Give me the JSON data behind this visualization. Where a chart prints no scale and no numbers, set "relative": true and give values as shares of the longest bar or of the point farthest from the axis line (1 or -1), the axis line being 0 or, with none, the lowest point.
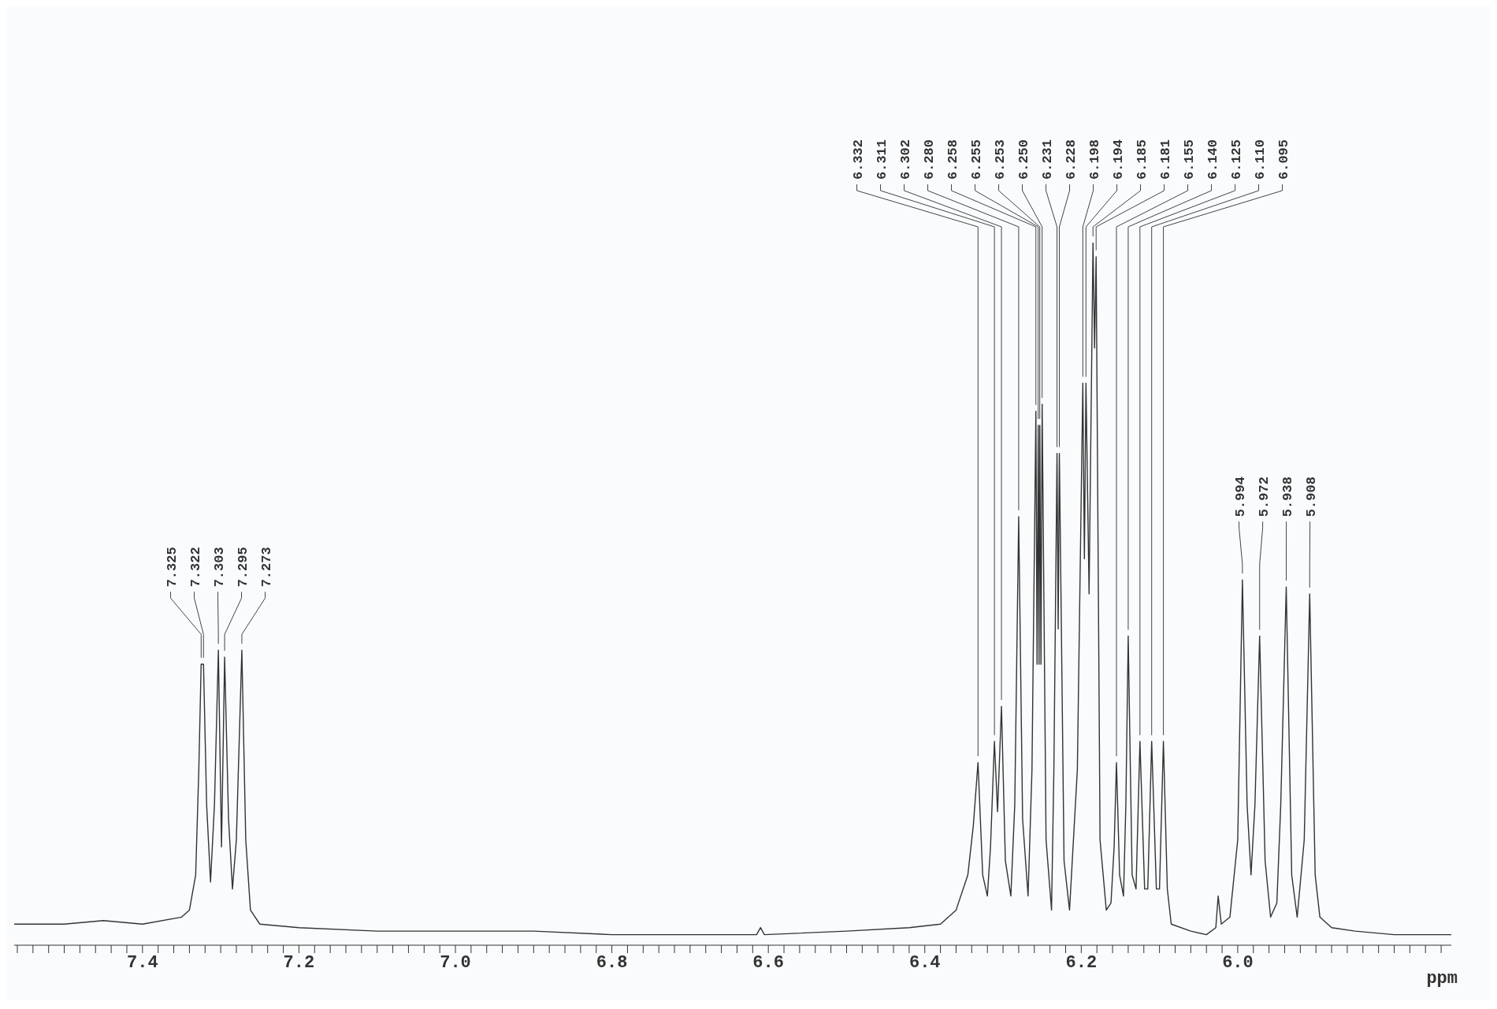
{
  "chart_data": {
    "type": "line",
    "relative": true,
    "xlabel": "ppm",
    "grid": false,
    "legend": false,
    "marker": "none",
    "line_style": "solid",
    "xlim": [
      7.564,
      5.727
    ],
    "xticks": [
      {
        "value": 7.56,
        "label": null
      },
      {
        "value": 7.54,
        "label": null
      },
      {
        "value": 7.52,
        "label": null
      },
      {
        "value": 7.5,
        "label": null
      },
      {
        "value": 7.48,
        "label": null
      },
      {
        "value": 7.46,
        "label": null
      },
      {
        "value": 7.44,
        "label": null
      },
      {
        "value": 7.42,
        "label": null
      },
      7.4,
      {
        "value": 7.38,
        "label": null
      },
      {
        "value": 7.36,
        "label": null
      },
      {
        "value": 7.34,
        "label": null
      },
      {
        "value": 7.32,
        "label": null
      },
      {
        "value": 7.3,
        "label": null
      },
      {
        "value": 7.28,
        "label": null
      },
      {
        "value": 7.26,
        "label": null
      },
      {
        "value": 7.24,
        "label": null
      },
      {
        "value": 7.22,
        "label": null
      },
      7.2,
      {
        "value": 7.18,
        "label": null
      },
      {
        "value": 7.16,
        "label": null
      },
      {
        "value": 7.14,
        "label": null
      },
      {
        "value": 7.12,
        "label": null
      },
      {
        "value": 7.1,
        "label": null
      },
      {
        "value": 7.08,
        "label": null
      },
      {
        "value": 7.06,
        "label": null
      },
      {
        "value": 7.04,
        "label": null
      },
      {
        "value": 7.02,
        "label": null
      },
      {
        "value": 7,
        "label": "7.0"
      },
      {
        "value": 6.98,
        "label": null
      },
      {
        "value": 6.96,
        "label": null
      },
      {
        "value": 6.94,
        "label": null
      },
      {
        "value": 6.92,
        "label": null
      },
      {
        "value": 6.9,
        "label": null
      },
      {
        "value": 6.88,
        "label": null
      },
      {
        "value": 6.86,
        "label": null
      },
      {
        "value": 6.84,
        "label": null
      },
      {
        "value": 6.82,
        "label": null
      },
      6.8,
      {
        "value": 6.78,
        "label": null
      },
      {
        "value": 6.76,
        "label": null
      },
      {
        "value": 6.74,
        "label": null
      },
      {
        "value": 6.72,
        "label": null
      },
      {
        "value": 6.7,
        "label": null
      },
      {
        "value": 6.68,
        "label": null
      },
      {
        "value": 6.66,
        "label": null
      },
      {
        "value": 6.64,
        "label": null
      },
      {
        "value": 6.62,
        "label": null
      },
      6.6,
      {
        "value": 6.58,
        "label": null
      },
      {
        "value": 6.56,
        "label": null
      },
      {
        "value": 6.54,
        "label": null
      },
      {
        "value": 6.52,
        "label": null
      },
      {
        "value": 6.5,
        "label": null
      },
      {
        "value": 6.48,
        "label": null
      },
      {
        "value": 6.46,
        "label": null
      },
      {
        "value": 6.44,
        "label": null
      },
      {
        "value": 6.42,
        "label": null
      },
      6.4,
      {
        "value": 6.38,
        "label": null
      },
      {
        "value": 6.36,
        "label": null
      },
      {
        "value": 6.34,
        "label": null
      },
      {
        "value": 6.32,
        "label": null
      },
      {
        "value": 6.3,
        "label": null
      },
      {
        "value": 6.28,
        "label": null
      },
      {
        "value": 6.26,
        "label": null
      },
      {
        "value": 6.24,
        "label": null
      },
      {
        "value": 6.22,
        "label": null
      },
      6.2,
      {
        "value": 6.18,
        "label": null
      },
      {
        "value": 6.16,
        "label": null
      },
      {
        "value": 6.14,
        "label": null
      },
      {
        "value": 6.12,
        "label": null
      },
      {
        "value": 6.1,
        "label": null
      },
      {
        "value": 6.08,
        "label": null
      },
      {
        "value": 6.06,
        "label": null
      },
      {
        "value": 6.04,
        "label": null
      },
      {
        "value": 6.02,
        "label": null
      },
      {
        "value": 6,
        "label": "6.0"
      },
      {
        "value": 5.98,
        "label": null
      },
      {
        "value": 5.96,
        "label": null
      },
      {
        "value": 5.94,
        "label": null
      },
      {
        "value": 5.92,
        "label": null
      },
      {
        "value": 5.9,
        "label": null
      },
      {
        "value": 5.88,
        "label": null
      },
      {
        "value": 5.86,
        "label": null
      },
      {
        "value": 5.84,
        "label": null
      },
      {
        "value": 5.82,
        "label": null
      },
      {
        "value": 5.8,
        "label": null
      },
      {
        "value": 5.78,
        "label": null
      },
      {
        "value": 5.76,
        "label": null
      },
      {
        "value": 5.74,
        "label": null
      }
    ],
    "series": [
      {
        "color": "#333333",
        "x": [
          7.564,
          7.5,
          7.45,
          7.4,
          7.35,
          7.34,
          7.332,
          7.328,
          7.325,
          7.322,
          7.318,
          7.313,
          7.308,
          7.303,
          7.299,
          7.295,
          7.29,
          7.285,
          7.28,
          7.273,
          7.268,
          7.262,
          7.25,
          7.2,
          7.1,
          7.0,
          6.9,
          6.8,
          6.7,
          6.615,
          6.61,
          6.605,
          6.5,
          6.42,
          6.38,
          6.36,
          6.345,
          6.338,
          6.332,
          6.326,
          6.32,
          6.316,
          6.311,
          6.307,
          6.302,
          6.297,
          6.29,
          6.285,
          6.28,
          6.275,
          6.268,
          6.263,
          6.258,
          6.2565,
          6.255,
          6.254,
          6.253,
          6.2515,
          6.25,
          6.245,
          6.238,
          6.235,
          6.231,
          6.2295,
          6.228,
          6.222,
          6.215,
          6.205,
          6.198,
          6.196,
          6.194,
          6.19,
          6.185,
          6.183,
          6.181,
          6.176,
          6.168,
          6.162,
          6.158,
          6.155,
          6.151,
          6.146,
          6.143,
          6.14,
          6.135,
          6.13,
          6.125,
          6.119,
          6.115,
          6.11,
          6.104,
          6.1,
          6.095,
          6.09,
          6.085,
          6.06,
          6.04,
          6.028,
          6.025,
          6.021,
          6.01,
          6.0,
          5.994,
          5.988,
          5.983,
          5.978,
          5.972,
          5.965,
          5.958,
          5.95,
          5.945,
          5.938,
          5.931,
          5.924,
          5.915,
          5.908,
          5.901,
          5.895,
          5.88,
          5.85,
          5.8,
          5.727
        ],
        "values": [
          0.03,
          0.03,
          0.035,
          0.03,
          0.04,
          0.05,
          0.1,
          0.25,
          0.4,
          0.4,
          0.2,
          0.09,
          0.2,
          0.42,
          0.14,
          0.41,
          0.18,
          0.08,
          0.15,
          0.42,
          0.15,
          0.05,
          0.03,
          0.025,
          0.02,
          0.02,
          0.02,
          0.015,
          0.015,
          0.015,
          0.025,
          0.015,
          0.02,
          0.025,
          0.03,
          0.05,
          0.1,
          0.17,
          0.26,
          0.1,
          0.07,
          0.14,
          0.29,
          0.19,
          0.34,
          0.12,
          0.07,
          0.2,
          0.61,
          0.18,
          0.07,
          0.25,
          0.76,
          0.4,
          0.74,
          0.4,
          0.74,
          0.4,
          0.77,
          0.15,
          0.05,
          0.25,
          0.7,
          0.45,
          0.7,
          0.12,
          0.05,
          0.25,
          0.8,
          0.55,
          0.8,
          0.5,
          1.0,
          0.85,
          0.98,
          0.15,
          0.05,
          0.06,
          0.14,
          0.26,
          0.1,
          0.07,
          0.2,
          0.44,
          0.1,
          0.08,
          0.29,
          0.08,
          0.08,
          0.29,
          0.08,
          0.08,
          0.29,
          0.08,
          0.03,
          0.02,
          0.015,
          0.025,
          0.07,
          0.03,
          0.04,
          0.15,
          0.52,
          0.2,
          0.1,
          0.2,
          0.44,
          0.12,
          0.04,
          0.06,
          0.2,
          0.51,
          0.1,
          0.04,
          0.15,
          0.5,
          0.1,
          0.04,
          0.025,
          0.02,
          0.015,
          0.015
        ]
      }
    ],
    "annotations": [
      {
        "text": "7.325",
        "x": 7.325,
        "y": 0.4
      },
      {
        "text": "7.322",
        "x": 7.322,
        "y": 0.4
      },
      {
        "text": "7.303",
        "x": 7.303,
        "y": 0.42
      },
      {
        "text": "7.295",
        "x": 7.295,
        "y": 0.41
      },
      {
        "text": "7.273",
        "x": 7.273,
        "y": 0.42
      },
      {
        "text": "6.332",
        "x": 6.332,
        "y": 0.26
      },
      {
        "text": "6.311",
        "x": 6.311,
        "y": 0.29
      },
      {
        "text": "6.302",
        "x": 6.302,
        "y": 0.34
      },
      {
        "text": "6.280",
        "x": 6.28,
        "y": 0.61
      },
      {
        "text": "6.258",
        "x": 6.258,
        "y": 0.76
      },
      {
        "text": "6.255",
        "x": 6.255,
        "y": 0.74
      },
      {
        "text": "6.253",
        "x": 6.253,
        "y": 0.74
      },
      {
        "text": "6.250",
        "x": 6.25,
        "y": 0.77
      },
      {
        "text": "6.231",
        "x": 6.231,
        "y": 0.7
      },
      {
        "text": "6.228",
        "x": 6.228,
        "y": 0.7
      },
      {
        "text": "6.198",
        "x": 6.198,
        "y": 0.8
      },
      {
        "text": "6.194",
        "x": 6.194,
        "y": 0.8
      },
      {
        "text": "6.185",
        "x": 6.185,
        "y": 1.0
      },
      {
        "text": "6.181",
        "x": 6.181,
        "y": 0.98
      },
      {
        "text": "6.155",
        "x": 6.155,
        "y": 0.26
      },
      {
        "text": "6.140",
        "x": 6.14,
        "y": 0.44
      },
      {
        "text": "6.125",
        "x": 6.125,
        "y": 0.29
      },
      {
        "text": "6.110",
        "x": 6.11,
        "y": 0.29
      },
      {
        "text": "6.095",
        "x": 6.095,
        "y": 0.29
      },
      {
        "text": "5.994",
        "x": 5.994,
        "y": 0.52
      },
      {
        "text": "5.972",
        "x": 5.972,
        "y": 0.44
      },
      {
        "text": "5.938",
        "x": 5.938,
        "y": 0.51
      },
      {
        "text": "5.908",
        "x": 5.908,
        "y": 0.5
      }
    ]
  }
}
